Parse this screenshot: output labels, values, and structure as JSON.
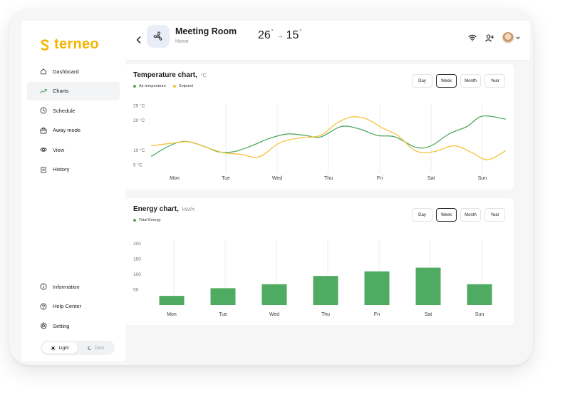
{
  "app": {
    "brand": "terneo"
  },
  "colors": {
    "brand": "#f5b400",
    "green": "#4faa62",
    "yellow": "#f5c33b",
    "gridline": "#ececee"
  },
  "sidebar": {
    "items": [
      {
        "label": "Dashboard",
        "icon": "home-icon",
        "active": false
      },
      {
        "label": "Charts",
        "icon": "trend-icon",
        "active": true
      },
      {
        "label": "Schedule",
        "icon": "clock-icon",
        "active": false
      },
      {
        "label": "Away mode",
        "icon": "suitcase-icon",
        "active": false
      },
      {
        "label": "View",
        "icon": "eye-icon",
        "active": false
      },
      {
        "label": "History",
        "icon": "clipboard-icon",
        "active": false
      }
    ],
    "bottom_items": [
      {
        "label": "Information",
        "icon": "info-icon"
      },
      {
        "label": "Help Center",
        "icon": "help-icon"
      },
      {
        "label": "Setting",
        "icon": "gear-icon"
      }
    ],
    "theme": {
      "light": "Light",
      "dark": "Dark",
      "selected": "light"
    }
  },
  "header": {
    "title": "Meeting Room",
    "subtitle": "Home",
    "temp_current": "26",
    "temp_target": "15",
    "degree": "°",
    "arrow": "→"
  },
  "ranges": [
    "Day",
    "Week",
    "Month",
    "Year"
  ],
  "active_range": "Week",
  "temperature_card": {
    "title": "Temperature chart,",
    "unit": "°C",
    "legend": [
      "Air temperature",
      "Setpoint"
    ]
  },
  "energy_card": {
    "title": "Energy chart,",
    "unit": "kW/h",
    "legend": [
      "Total Energy"
    ]
  },
  "chart_data": [
    {
      "type": "line",
      "categories": [
        "Mon",
        "Tue",
        "Wed",
        "Thu",
        "Fri",
        "Sat",
        "Sun"
      ],
      "yticks": [
        "25 °C",
        "20 °C",
        "10 °C",
        "5 °C"
      ],
      "ytick_values": [
        25,
        20,
        10,
        5
      ],
      "ylim": [
        3,
        27
      ],
      "x_domain": [
        -0.45,
        6.45
      ],
      "series": [
        {
          "name": "Air temperature",
          "color": "#4faa62",
          "points": [
            [
              -0.45,
              8
            ],
            [
              -0.1,
              11.5
            ],
            [
              0.2,
              13
            ],
            [
              0.55,
              11.5
            ],
            [
              0.85,
              9.5
            ],
            [
              1.15,
              9.5
            ],
            [
              1.5,
              11.5
            ],
            [
              1.85,
              14
            ],
            [
              2.2,
              15.5
            ],
            [
              2.55,
              15
            ],
            [
              2.85,
              14.5
            ],
            [
              3.25,
              18
            ],
            [
              3.6,
              17.2
            ],
            [
              3.95,
              15
            ],
            [
              4.3,
              14.5
            ],
            [
              4.7,
              11
            ],
            [
              5.0,
              11.5
            ],
            [
              5.35,
              15.5
            ],
            [
              5.7,
              18
            ],
            [
              6.0,
              21.5
            ],
            [
              6.45,
              20.5
            ]
          ]
        },
        {
          "name": "Setpoint",
          "color": "#f5c33b",
          "points": [
            [
              -0.45,
              11.5
            ],
            [
              0,
              12.5
            ],
            [
              0.3,
              12.8
            ],
            [
              0.65,
              10.8
            ],
            [
              0.95,
              9.2
            ],
            [
              1.3,
              8.6
            ],
            [
              1.65,
              7.8
            ],
            [
              2.05,
              12.5
            ],
            [
              2.45,
              14.2
            ],
            [
              2.85,
              15
            ],
            [
              3.15,
              19
            ],
            [
              3.45,
              21.2
            ],
            [
              3.75,
              20.5
            ],
            [
              4.05,
              17.5
            ],
            [
              4.35,
              15
            ],
            [
              4.7,
              9.8
            ],
            [
              5.05,
              9.5
            ],
            [
              5.45,
              11.5
            ],
            [
              5.8,
              9.2
            ],
            [
              6.1,
              6.8
            ],
            [
              6.45,
              9.8
            ]
          ]
        }
      ]
    },
    {
      "type": "bar",
      "categories": [
        "Mon",
        "Tue",
        "Wed",
        "Thu",
        "Fri",
        "Sat",
        "Sun"
      ],
      "series": [
        {
          "name": "Total Energy",
          "color": "#4faa62",
          "values": [
            30,
            55,
            68,
            95,
            110,
            122,
            68
          ]
        }
      ],
      "yticks": [
        "200",
        "150",
        "100",
        "50"
      ],
      "ytick_values": [
        200,
        150,
        100,
        50
      ],
      "ylim": [
        0,
        200
      ]
    }
  ]
}
